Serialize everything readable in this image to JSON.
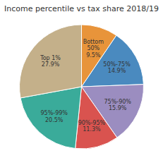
{
  "chart_data": {
    "type": "pie",
    "title": "Income percentile vs tax share 2018/19",
    "categories": [
      "Bottom\n50%\n9.5%",
      "50%-75%\n14.9%",
      "75%-90%\n15.9%",
      "90%-95%\n11.3%",
      "95%-99%\n20.5%",
      "Top 1%\n27.9%"
    ],
    "values": [
      9.5,
      14.9,
      15.9,
      11.3,
      20.5,
      27.9
    ],
    "colors": [
      "#e8943a",
      "#4a8abf",
      "#9b8dc0",
      "#d9534f",
      "#3aab9a",
      "#c4b08a"
    ]
  }
}
